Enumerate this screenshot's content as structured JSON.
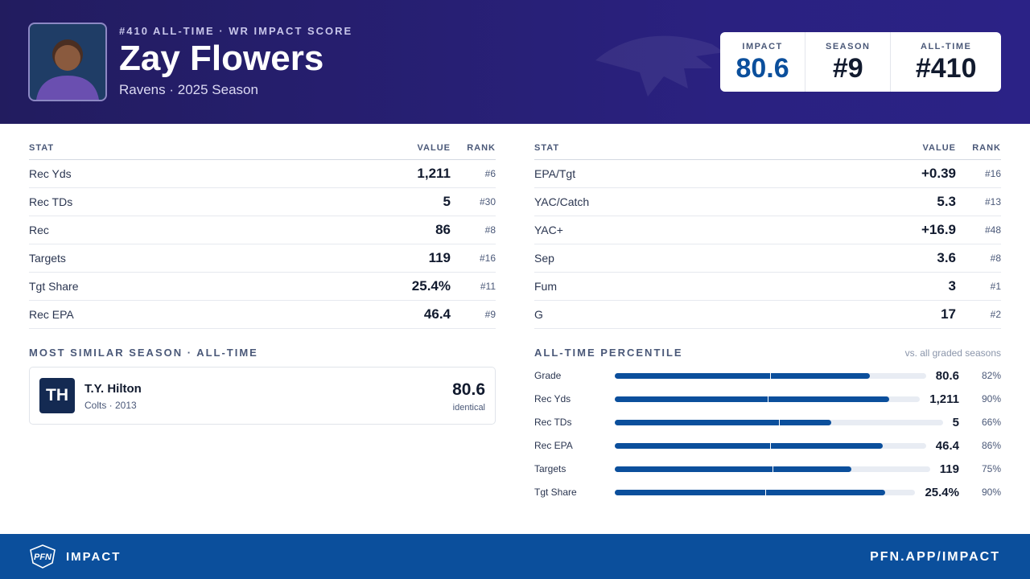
{
  "header": {
    "rank_line": "#410 ALL-TIME · WR IMPACT SCORE",
    "player": "Zay Flowers",
    "team_season": "Ravens · 2025 Season",
    "scores": [
      {
        "label": "IMPACT",
        "value": "80.6"
      },
      {
        "label": "SEASON",
        "value": "#9"
      },
      {
        "label": "ALL-TIME",
        "value": "#410"
      }
    ]
  },
  "tables": [
    {
      "columns": [
        "STAT",
        "VALUE",
        "RANK"
      ],
      "rows": [
        [
          "Rec Yds",
          "1,211",
          "#6"
        ],
        [
          "Rec TDs",
          "5",
          "#30"
        ],
        [
          "Rec",
          "86",
          "#8"
        ],
        [
          "Targets",
          "119",
          "#16"
        ],
        [
          "Tgt Share",
          "25.4%",
          "#11"
        ],
        [
          "Rec EPA",
          "46.4",
          "#9"
        ]
      ]
    },
    {
      "columns": [
        "STAT",
        "VALUE",
        "RANK"
      ],
      "rows": [
        [
          "EPA/Tgt",
          "+0.39",
          "#16"
        ],
        [
          "YAC/Catch",
          "5.3",
          "#13"
        ],
        [
          "YAC+",
          "+16.9",
          "#48"
        ],
        [
          "Sep",
          "3.6",
          "#8"
        ],
        [
          "Fum",
          "3",
          "#1"
        ],
        [
          "G",
          "17",
          "#2"
        ]
      ]
    }
  ],
  "similar": {
    "title": "MOST SIMILAR SEASON · ALL-TIME",
    "initials": "TH",
    "name": "T.Y. Hilton",
    "detail": "Colts · 2013",
    "score": "80.6",
    "note": "identical"
  },
  "percentile": {
    "title": "ALL-TIME PERCENTILE",
    "note": "vs. all graded seasons",
    "rows": [
      {
        "label": "Grade",
        "value": "80.6",
        "pct": {
          "value": 82,
          "label": "82%"
        }
      },
      {
        "label": "Rec Yds",
        "value": "1,211",
        "pct": {
          "value": 90,
          "label": "90%"
        }
      },
      {
        "label": "Rec TDs",
        "value": "5",
        "pct": {
          "value": 66,
          "label": "66%"
        }
      },
      {
        "label": "Rec EPA",
        "value": "46.4",
        "pct": {
          "value": 86,
          "label": "86%"
        }
      },
      {
        "label": "Targets",
        "value": "119",
        "pct": {
          "value": 75,
          "label": "75%"
        }
      },
      {
        "label": "Tgt Share",
        "value": "25.4%",
        "pct": {
          "value": 90,
          "label": "90%"
        }
      }
    ]
  },
  "footer": {
    "brand": "PFN",
    "product": "IMPACT",
    "url": "PFN.APP/IMPACT"
  }
}
